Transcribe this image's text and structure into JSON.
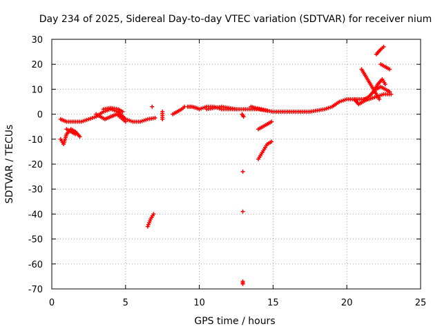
{
  "chart_data": {
    "type": "scatter",
    "title": "Day 234 of 2025, Sidereal Day-to-day VTEC variation (SDTVAR) for receiver nium",
    "xlabel": "GPS time / hours",
    "ylabel": "SDTVAR / TECUs",
    "xlim": [
      0,
      25
    ],
    "ylim": [
      -70,
      30
    ],
    "xticks": [
      "0",
      "5",
      "10",
      "15",
      "20",
      "25"
    ],
    "yticks": [
      "30",
      "20",
      "10",
      "0",
      "-10",
      "-20",
      "-30",
      "-40",
      "-50",
      "-60",
      "-70"
    ],
    "grid": true,
    "marker": "+",
    "color": "#ff0000",
    "segments": [
      [
        [
          0.6,
          -2
        ],
        [
          1.0,
          -3
        ],
        [
          1.5,
          -3
        ],
        [
          2.0,
          -3
        ],
        [
          2.5,
          -2
        ],
        [
          3.0,
          -1
        ],
        [
          3.5,
          1
        ],
        [
          4.0,
          2
        ],
        [
          4.5,
          1
        ],
        [
          5.0,
          -2
        ],
        [
          5.5,
          -3
        ],
        [
          6.0,
          -3
        ],
        [
          6.5,
          -2
        ],
        [
          7.0,
          -1.5
        ]
      ],
      [
        [
          0.6,
          -10
        ],
        [
          0.8,
          -12
        ],
        [
          1.0,
          -8
        ],
        [
          1.3,
          -6
        ],
        [
          1.6,
          -7
        ],
        [
          1.9,
          -9
        ]
      ],
      [
        [
          1.0,
          -6
        ],
        [
          1.3,
          -7
        ],
        [
          1.6,
          -8
        ]
      ],
      [
        [
          3.0,
          0
        ],
        [
          3.3,
          -1
        ],
        [
          3.6,
          -2
        ],
        [
          4.0,
          -1
        ],
        [
          4.4,
          0
        ],
        [
          4.8,
          -2
        ],
        [
          5.0,
          -3
        ]
      ],
      [
        [
          3.5,
          2
        ],
        [
          4.0,
          2.5
        ],
        [
          4.5,
          2
        ],
        [
          4.8,
          1
        ]
      ],
      [
        [
          6.5,
          -45
        ],
        [
          6.7,
          -42
        ],
        [
          6.9,
          -40
        ]
      ],
      [
        [
          6.8,
          3
        ]
      ],
      [
        [
          7.5,
          1
        ],
        [
          7.5,
          -2
        ]
      ],
      [
        [
          8.2,
          0
        ],
        [
          8.5,
          1
        ],
        [
          8.8,
          2
        ],
        [
          9.0,
          3
        ]
      ],
      [
        [
          9.2,
          3
        ],
        [
          9.5,
          3
        ],
        [
          9.8,
          2.5
        ],
        [
          10.0,
          2
        ],
        [
          10.5,
          3
        ],
        [
          11.0,
          3
        ],
        [
          11.5,
          2
        ],
        [
          12.0,
          2
        ],
        [
          12.5,
          2
        ],
        [
          13.0,
          2
        ],
        [
          13.5,
          2
        ],
        [
          14.0,
          2
        ],
        [
          14.5,
          1.5
        ],
        [
          15.0,
          1
        ],
        [
          15.5,
          1
        ],
        [
          16.0,
          1
        ],
        [
          16.5,
          1
        ],
        [
          17.0,
          1
        ],
        [
          17.5,
          1
        ],
        [
          18.0,
          1.5
        ],
        [
          18.5,
          2
        ],
        [
          19.0,
          3
        ],
        [
          19.5,
          5
        ],
        [
          20.0,
          6
        ],
        [
          20.5,
          6
        ],
        [
          21.0,
          6
        ],
        [
          21.5,
          6
        ],
        [
          22.0,
          7
        ],
        [
          22.5,
          8
        ],
        [
          23.0,
          8
        ]
      ],
      [
        [
          10.5,
          2
        ],
        [
          11.0,
          2.5
        ],
        [
          11.5,
          3
        ],
        [
          12.0,
          2.5
        ],
        [
          12.5,
          2
        ]
      ],
      [
        [
          12.9,
          0
        ],
        [
          13.0,
          -1
        ]
      ],
      [
        [
          12.95,
          -23
        ]
      ],
      [
        [
          12.95,
          -39
        ]
      ],
      [
        [
          12.95,
          -67
        ],
        [
          12.95,
          -68
        ]
      ],
      [
        [
          13.5,
          3
        ],
        [
          13.8,
          2.5
        ],
        [
          14.2,
          2
        ],
        [
          14.6,
          1.5
        ]
      ],
      [
        [
          14.0,
          -18
        ],
        [
          14.2,
          -16
        ],
        [
          14.4,
          -14
        ],
        [
          14.6,
          -12
        ],
        [
          14.9,
          -11
        ]
      ],
      [
        [
          14.0,
          -6
        ],
        [
          14.3,
          -5
        ],
        [
          14.6,
          -4
        ],
        [
          14.9,
          -3
        ]
      ],
      [
        [
          21.0,
          18
        ],
        [
          21.3,
          15
        ],
        [
          21.6,
          12
        ],
        [
          21.9,
          9
        ],
        [
          22.2,
          6
        ]
      ],
      [
        [
          21.2,
          6
        ],
        [
          21.5,
          7
        ],
        [
          21.8,
          9
        ],
        [
          22.1,
          12
        ],
        [
          22.4,
          14
        ],
        [
          22.6,
          12
        ]
      ],
      [
        [
          22.0,
          24
        ],
        [
          22.3,
          26
        ],
        [
          22.5,
          27
        ]
      ],
      [
        [
          22.3,
          20
        ],
        [
          22.6,
          19
        ],
        [
          22.9,
          18
        ]
      ],
      [
        [
          22.0,
          10
        ],
        [
          22.3,
          11
        ],
        [
          22.6,
          10
        ],
        [
          22.9,
          9
        ]
      ],
      [
        [
          20.5,
          6
        ],
        [
          20.8,
          4
        ],
        [
          21.1,
          5
        ],
        [
          21.4,
          6
        ]
      ]
    ]
  }
}
